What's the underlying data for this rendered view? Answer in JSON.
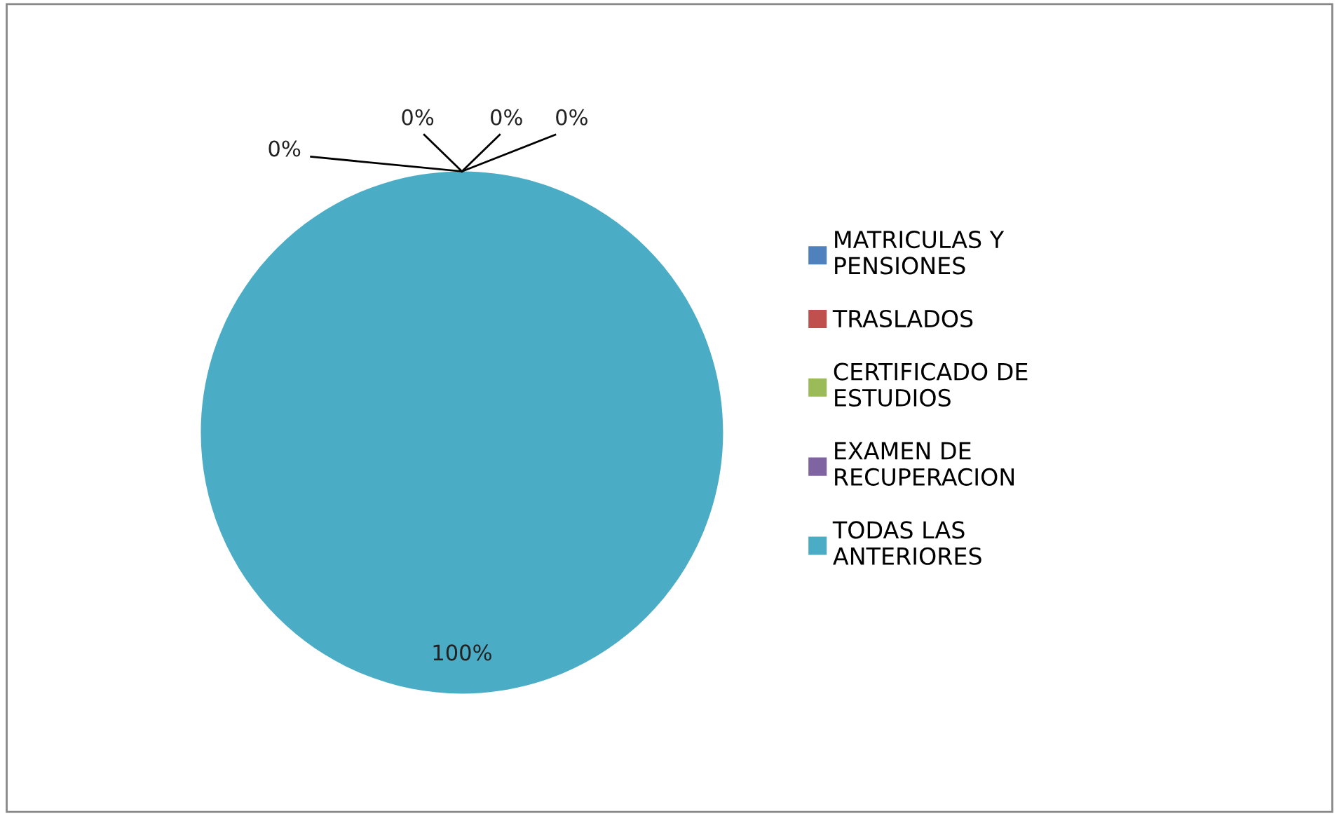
{
  "chart_data": {
    "type": "pie",
    "categories": [
      "MATRICULAS Y PENSIONES",
      "TRASLADOS",
      "CERTIFICADO DE ESTUDIOS",
      "EXAMEN DE RECUPERACION",
      "TODAS LAS ANTERIORES"
    ],
    "values": [
      0,
      0,
      0,
      0,
      100
    ],
    "colors": [
      "#4f81bd",
      "#c0504d",
      "#9bbb59",
      "#8064a2",
      "#4bacc6"
    ],
    "value_labels": [
      "0%",
      "0%",
      "0%",
      "0%",
      "100%"
    ],
    "legend": "right"
  }
}
